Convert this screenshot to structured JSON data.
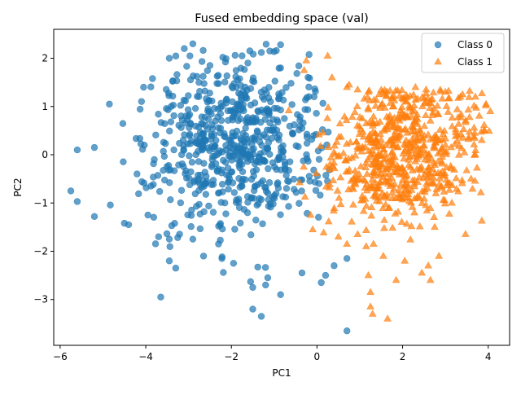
{
  "chart_data": {
    "type": "scatter",
    "title": "Fused embedding space (val)",
    "xlabel": "PC1",
    "ylabel": "PC2",
    "xlim": [
      -6.15,
      4.5
    ],
    "ylim": [
      -3.95,
      2.6
    ],
    "x_ticks": [
      -6,
      -4,
      -2,
      0,
      2,
      4
    ],
    "y_ticks": [
      -3,
      -2,
      -1,
      0,
      1,
      2
    ],
    "x_tick_labels": [
      "−6",
      "−4",
      "−2",
      "0",
      "2",
      "4"
    ],
    "y_tick_labels": [
      "−3",
      "−2",
      "−1",
      "0",
      "1",
      "2"
    ],
    "grid": false,
    "legend_position": "top-right",
    "series": [
      {
        "name": "Class 0",
        "marker": "circle",
        "color": "#1f77b4",
        "alpha": 0.7,
        "cluster": {
          "center": [
            -1.9,
            0.15
          ],
          "spread": [
            1.0,
            0.85
          ],
          "n": 650
        },
        "points": [
          [
            -5.75,
            -0.75
          ],
          [
            -5.6,
            -0.97
          ],
          [
            -5.6,
            0.1
          ],
          [
            -5.2,
            0.15
          ],
          [
            -5.2,
            -1.28
          ],
          [
            -4.85,
            1.05
          ],
          [
            -4.5,
            -1.42
          ],
          [
            -4.4,
            -1.45
          ],
          [
            -4.05,
            1.4
          ],
          [
            -3.95,
            -1.25
          ],
          [
            -3.7,
            -1.7
          ],
          [
            -3.65,
            -2.95
          ],
          [
            -3.45,
            -1.75
          ],
          [
            -3.45,
            -2.2
          ],
          [
            -3.3,
            -2.35
          ],
          [
            -3.45,
            2.0
          ],
          [
            -3.1,
            2.2
          ],
          [
            -2.9,
            2.3
          ],
          [
            -2.5,
            1.85
          ],
          [
            -2.2,
            2.02
          ],
          [
            -1.75,
            2.05
          ],
          [
            -1.3,
            2.12
          ],
          [
            -0.85,
            2.28
          ],
          [
            -0.85,
            1.8
          ],
          [
            -1.5,
            -2.75
          ],
          [
            -1.5,
            -3.2
          ],
          [
            -1.3,
            -3.35
          ],
          [
            -1.15,
            -2.55
          ],
          [
            -1.2,
            -2.7
          ],
          [
            -0.85,
            -2.9
          ],
          [
            -0.35,
            -2.45
          ],
          [
            0.1,
            -2.65
          ],
          [
            0.2,
            -2.5
          ],
          [
            0.4,
            -2.3
          ],
          [
            0.7,
            -2.15
          ],
          [
            0.7,
            -3.65
          ],
          [
            -2.65,
            -2.1
          ],
          [
            -2.9,
            -1.75
          ],
          [
            -2.3,
            -1.85
          ],
          [
            -1.95,
            -2.25
          ]
        ]
      },
      {
        "name": "Class 1",
        "marker": "triangle",
        "color": "#ff7f0e",
        "alpha": 0.7,
        "cluster": {
          "center": [
            1.85,
            0.1
          ],
          "spread": [
            0.95,
            0.85
          ],
          "n": 650
        },
        "points": [
          [
            -0.25,
            1.95
          ],
          [
            -0.3,
            1.75
          ],
          [
            0.25,
            2.05
          ],
          [
            0.35,
            1.6
          ],
          [
            0.7,
            1.4
          ],
          [
            0.75,
            1.45
          ],
          [
            0.95,
            1.35
          ],
          [
            1.2,
            1.3
          ],
          [
            1.45,
            1.25
          ],
          [
            2.3,
            1.4
          ],
          [
            2.55,
            1.35
          ],
          [
            3.0,
            1.3
          ],
          [
            3.4,
            1.25
          ],
          [
            3.7,
            1.2
          ],
          [
            3.95,
            1.05
          ],
          [
            4.05,
            0.9
          ],
          [
            3.9,
            0.5
          ],
          [
            3.85,
            0.3
          ],
          [
            3.7,
            0.0
          ],
          [
            3.6,
            -0.5
          ],
          [
            3.15,
            -1.0
          ],
          [
            2.75,
            -1.5
          ],
          [
            2.85,
            -2.1
          ],
          [
            2.6,
            -2.3
          ],
          [
            2.45,
            -2.45
          ],
          [
            2.65,
            -2.6
          ],
          [
            2.05,
            -2.2
          ],
          [
            1.85,
            -2.6
          ],
          [
            1.55,
            -2.1
          ],
          [
            1.2,
            -2.5
          ],
          [
            1.25,
            -2.85
          ],
          [
            1.25,
            -3.15
          ],
          [
            1.3,
            -3.3
          ],
          [
            1.65,
            -3.4
          ],
          [
            1.15,
            -1.9
          ],
          [
            0.95,
            -1.65
          ],
          [
            0.7,
            -1.85
          ],
          [
            0.5,
            -1.7
          ],
          [
            -0.1,
            -1.55
          ],
          [
            -0.15,
            -1.25
          ]
        ]
      }
    ]
  }
}
